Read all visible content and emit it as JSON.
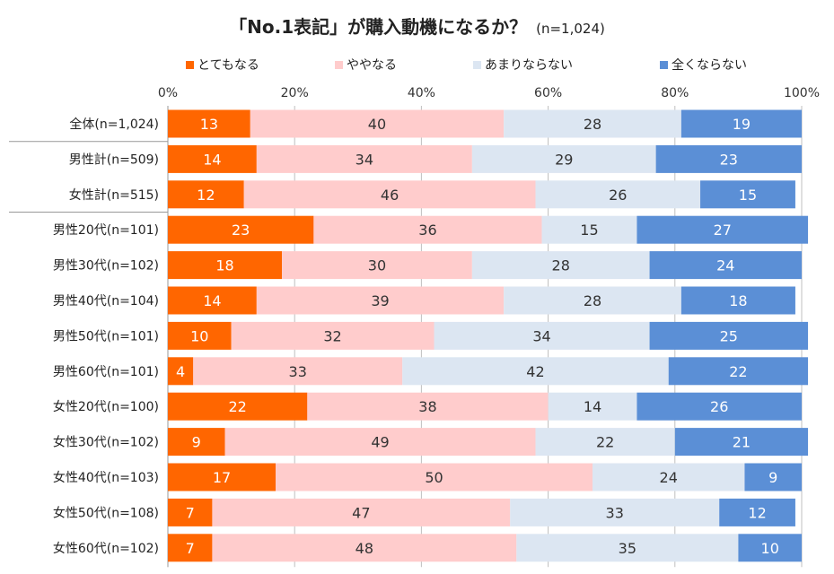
{
  "title": "「No.1表記」が購入動機になるか？",
  "sample_note": "(n=1,024)",
  "colors": {
    "s0": "#ff6600",
    "s1": "#ffcccc",
    "s2": "#dce6f2",
    "s3": "#5b8fd6",
    "grid": "#bfbfbf"
  },
  "chart_data": {
    "type": "bar",
    "orientation": "horizontal",
    "stacked": true,
    "title": "「No.1表記」が購入動機になるか？",
    "subtitle": "(n=1,024)",
    "xlim": [
      0,
      100
    ],
    "x_ticks": [
      "0%",
      "20%",
      "40%",
      "60%",
      "80%",
      "100%"
    ],
    "grid": true,
    "legend_position": "top",
    "categories": [
      "全体(n=1,024)",
      "男性計(n=509)",
      "女性計(n=515)",
      "男性20代(n=101)",
      "男性30代(n=102)",
      "男性40代(n=104)",
      "男性50代(n=101)",
      "男性60代(n=101)",
      "女性20代(n=100)",
      "女性30代(n=102)",
      "女性40代(n=103)",
      "女性50代(n=108)",
      "女性60代(n=102)"
    ],
    "series": [
      {
        "name": "とてもなる",
        "values": [
          13,
          14,
          12,
          23,
          18,
          14,
          10,
          4,
          22,
          9,
          17,
          7,
          7
        ]
      },
      {
        "name": "ややなる",
        "values": [
          40,
          34,
          46,
          36,
          30,
          39,
          32,
          33,
          38,
          49,
          50,
          47,
          48
        ]
      },
      {
        "name": "あまりならない",
        "values": [
          28,
          29,
          26,
          15,
          28,
          28,
          34,
          42,
          14,
          22,
          24,
          33,
          35
        ]
      },
      {
        "name": "全くならない",
        "values": [
          19,
          23,
          15,
          27,
          24,
          18,
          25,
          22,
          26,
          21,
          9,
          12,
          10
        ]
      }
    ]
  }
}
